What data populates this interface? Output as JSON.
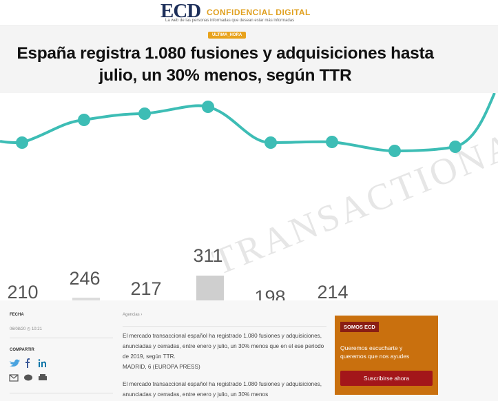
{
  "header": {
    "logo": "ECD",
    "brand": "CONFIDENCIAL DIGITAL",
    "tagline": "La web de las personas informadas que desean estar más informadas"
  },
  "article": {
    "tag": "ULTIMA_HORA",
    "title": "España registra 1.080 fusiones y adquisiciones hasta julio, un 30% menos, según TTR",
    "date_label": "FECHA",
    "date": "06/08/20",
    "time": "10:21",
    "share_label": "COMPARTIR",
    "source": "Agencias",
    "source_arrow": "›",
    "paragraphs": [
      "El mercado transaccional español ha registrado 1.080 fusiones y adquisiciones, anunciadas y cerradas, entre enero y julio, un 30% menos que en el ese periodo de 2019, según TTR.",
      "MADRID, 6 (EUROPA PRESS)",
      "El mercado transaccional español ha registrado 1.080 fusiones y adquisiciones, anunciadas y cerradas, entre enero y julio, un 30% menos"
    ]
  },
  "hero": {
    "watermark": "TRANSACTIONAL",
    "labels": [
      "210",
      "246",
      "217",
      "311",
      "198",
      "214"
    ]
  },
  "promo": {
    "title": "SOMOS ECD",
    "text": "Queremos escucharte y queremos que nos ayudes",
    "button": "Suscribirse ahora"
  }
}
